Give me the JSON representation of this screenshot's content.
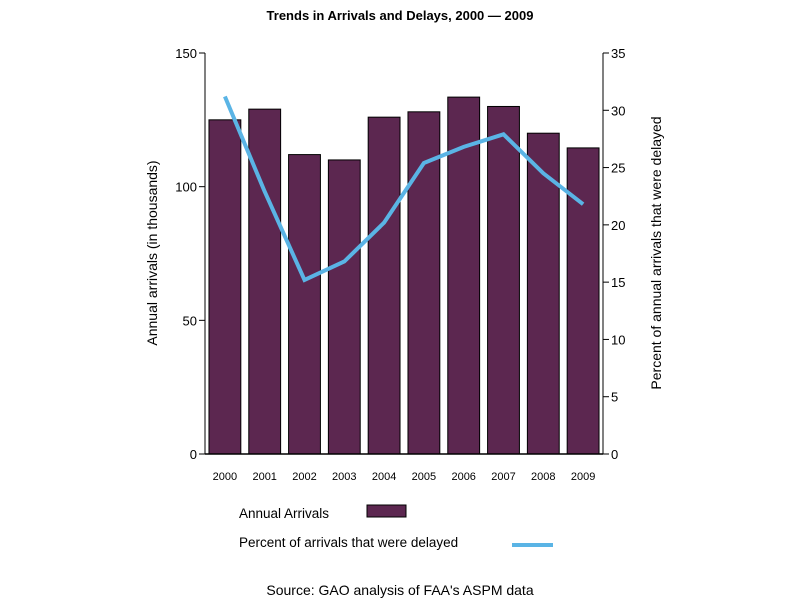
{
  "chart_data": {
    "type": "bar",
    "title": "Trends in Arrivals and Delays, 2000 — 2009",
    "categories": [
      "2000",
      "2001",
      "2002",
      "2003",
      "2004",
      "2005",
      "2006",
      "2007",
      "2008",
      "2009"
    ],
    "series": [
      {
        "name": "Annual Arrivals",
        "type": "bar",
        "axis": "left",
        "color": "#5c2750",
        "values": [
          125,
          129,
          112,
          110,
          126,
          128,
          133.5,
          130,
          120,
          114.5
        ]
      },
      {
        "name": "Percent of arrivals that were delayed",
        "type": "line",
        "axis": "right",
        "color": "#5ab4e5",
        "values": [
          31.2,
          22.9,
          15.2,
          16.8,
          20.2,
          25.4,
          26.8,
          27.9,
          24.5,
          21.8
        ]
      }
    ],
    "ylabel": "Annual arrivals (in thousands)",
    "ylim": [
      0,
      150
    ],
    "yticks": [
      "0",
      "50",
      "100",
      "150"
    ],
    "ylabel_right": "Percent of annual arrivals that were delayed",
    "ylim_right": [
      0,
      35
    ],
    "yticks_right": [
      "0",
      "5",
      "10",
      "15",
      "20",
      "25",
      "30",
      "35"
    ],
    "xlabel": "",
    "grid": false,
    "legend_position": "bottom-center",
    "legend": [
      {
        "label": "Annual Arrivals",
        "kind": "bar-swatch"
      },
      {
        "label": "Percent of arrivals that were delayed",
        "kind": "line-swatch"
      }
    ],
    "source_note": "Source: GAO analysis of FAA's ASPM data"
  }
}
